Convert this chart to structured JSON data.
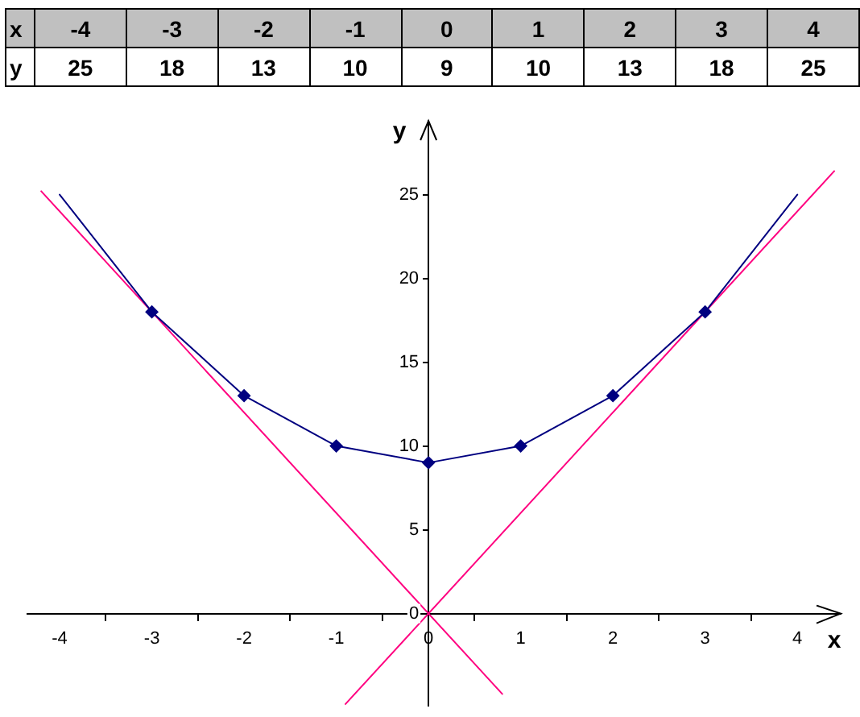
{
  "chart_data": [
    {
      "type": "heatmap",
      "xlabel": "x",
      "categories": [
        "-4",
        "-3",
        "-2",
        "-1",
        "0",
        "1",
        "2",
        "3",
        "4"
      ],
      "y_categories": [
        "y"
      ],
      "cells": [
        [
          25,
          18,
          13,
          10,
          9,
          10,
          13,
          18,
          25
        ]
      ],
      "data_labels": true
    },
    {
      "type": "line",
      "xlabel": "x",
      "ylabel": "y",
      "xlim": [
        -4.35,
        4.47
      ],
      "xticks": [
        -4,
        {
          "value": -3.5,
          "label": null
        },
        -3,
        {
          "value": -2.5,
          "label": null
        },
        -2,
        {
          "value": -1.5,
          "label": null
        },
        -1,
        {
          "value": -0.5,
          "label": null
        },
        0,
        {
          "value": 0.5,
          "label": null
        },
        1,
        {
          "value": 1.5,
          "label": null
        },
        2,
        {
          "value": 2.5,
          "label": null
        },
        3,
        {
          "value": 3.5,
          "label": null
        },
        4
      ],
      "ylim": [
        -5.5,
        29.4
      ],
      "yticks": [
        0,
        5,
        10,
        15,
        20,
        25
      ],
      "grid": false,
      "legend": false,
      "series": [
        {
          "type": "line",
          "color": "#000080",
          "x": [
            -4,
            -3,
            -2,
            -1,
            0,
            1,
            2,
            3,
            4
          ],
          "values": [
            25,
            18,
            13,
            10,
            9,
            10,
            13,
            18,
            25
          ],
          "marker": "none"
        },
        {
          "type": "scatter",
          "color": "#000080",
          "x": [
            -3,
            -2,
            -1,
            0,
            1,
            2,
            3
          ],
          "values": [
            18,
            13,
            10,
            9,
            10,
            13,
            18
          ],
          "marker": "diamond"
        },
        {
          "type": "line",
          "color": "#ff0080",
          "x": [
            -4.2,
            0.8
          ],
          "values": [
            25.2,
            -4.8
          ],
          "marker": "none"
        },
        {
          "type": "line",
          "color": "#ff0080",
          "x": [
            -0.9,
            4.4
          ],
          "values": [
            -5.4,
            26.4
          ],
          "marker": "none"
        }
      ]
    }
  ]
}
